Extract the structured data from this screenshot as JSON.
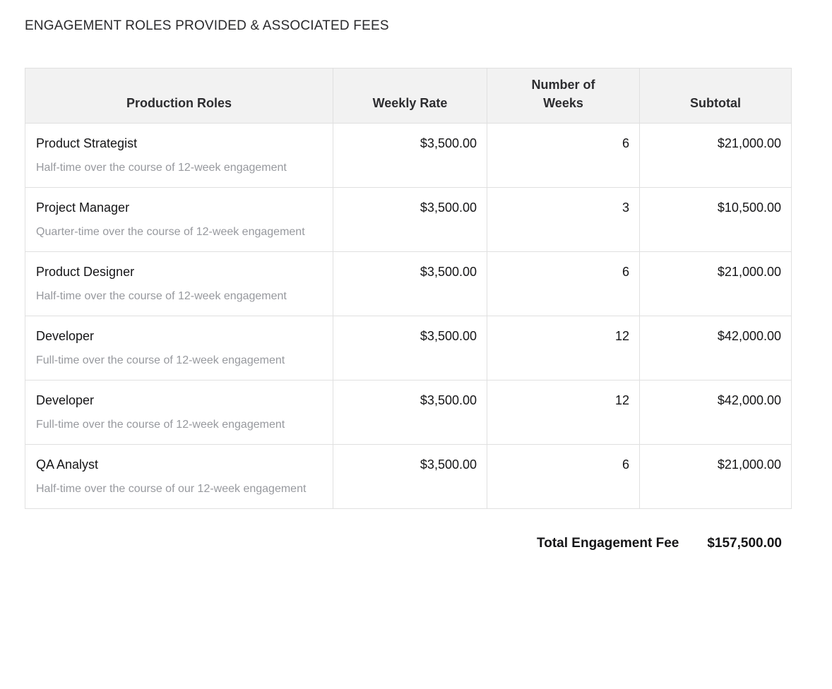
{
  "page": {
    "title": "ENGAGEMENT ROLES PROVIDED & ASSOCIATED FEES"
  },
  "table": {
    "headers": [
      "Production Roles",
      "Weekly Rate",
      "Number of Weeks",
      "Subtotal"
    ],
    "rows": [
      {
        "role": "Product Strategist",
        "description": "Half-time over the course of 12-week engagement",
        "weekly_rate": "$3,500.00",
        "weeks": "6",
        "subtotal": "$21,000.00"
      },
      {
        "role": "Project Manager",
        "description": "Quarter-time over the course of 12-week engagement",
        "weekly_rate": "$3,500.00",
        "weeks": "3",
        "subtotal": "$10,500.00"
      },
      {
        "role": "Product Designer",
        "description": "Half-time over the course of 12-week engagement",
        "weekly_rate": "$3,500.00",
        "weeks": "6",
        "subtotal": "$21,000.00"
      },
      {
        "role": "Developer",
        "description": "Full-time over the course of 12-week engagement",
        "weekly_rate": "$3,500.00",
        "weeks": "12",
        "subtotal": "$42,000.00"
      },
      {
        "role": "Developer",
        "description": "Full-time over the course of 12-week engagement",
        "weekly_rate": "$3,500.00",
        "weeks": "12",
        "subtotal": "$42,000.00"
      },
      {
        "role": "QA Analyst",
        "description": "Half-time over the course of our 12-week engagement",
        "weekly_rate": "$3,500.00",
        "weeks": "6",
        "subtotal": "$21,000.00"
      }
    ],
    "total_label": "Total Engagement Fee",
    "total_value": "$157,500.00"
  },
  "colors": {
    "header_bg": "#f2f2f2",
    "border": "#e0e0e0",
    "text_primary": "#151517",
    "text_muted": "#97999e"
  }
}
